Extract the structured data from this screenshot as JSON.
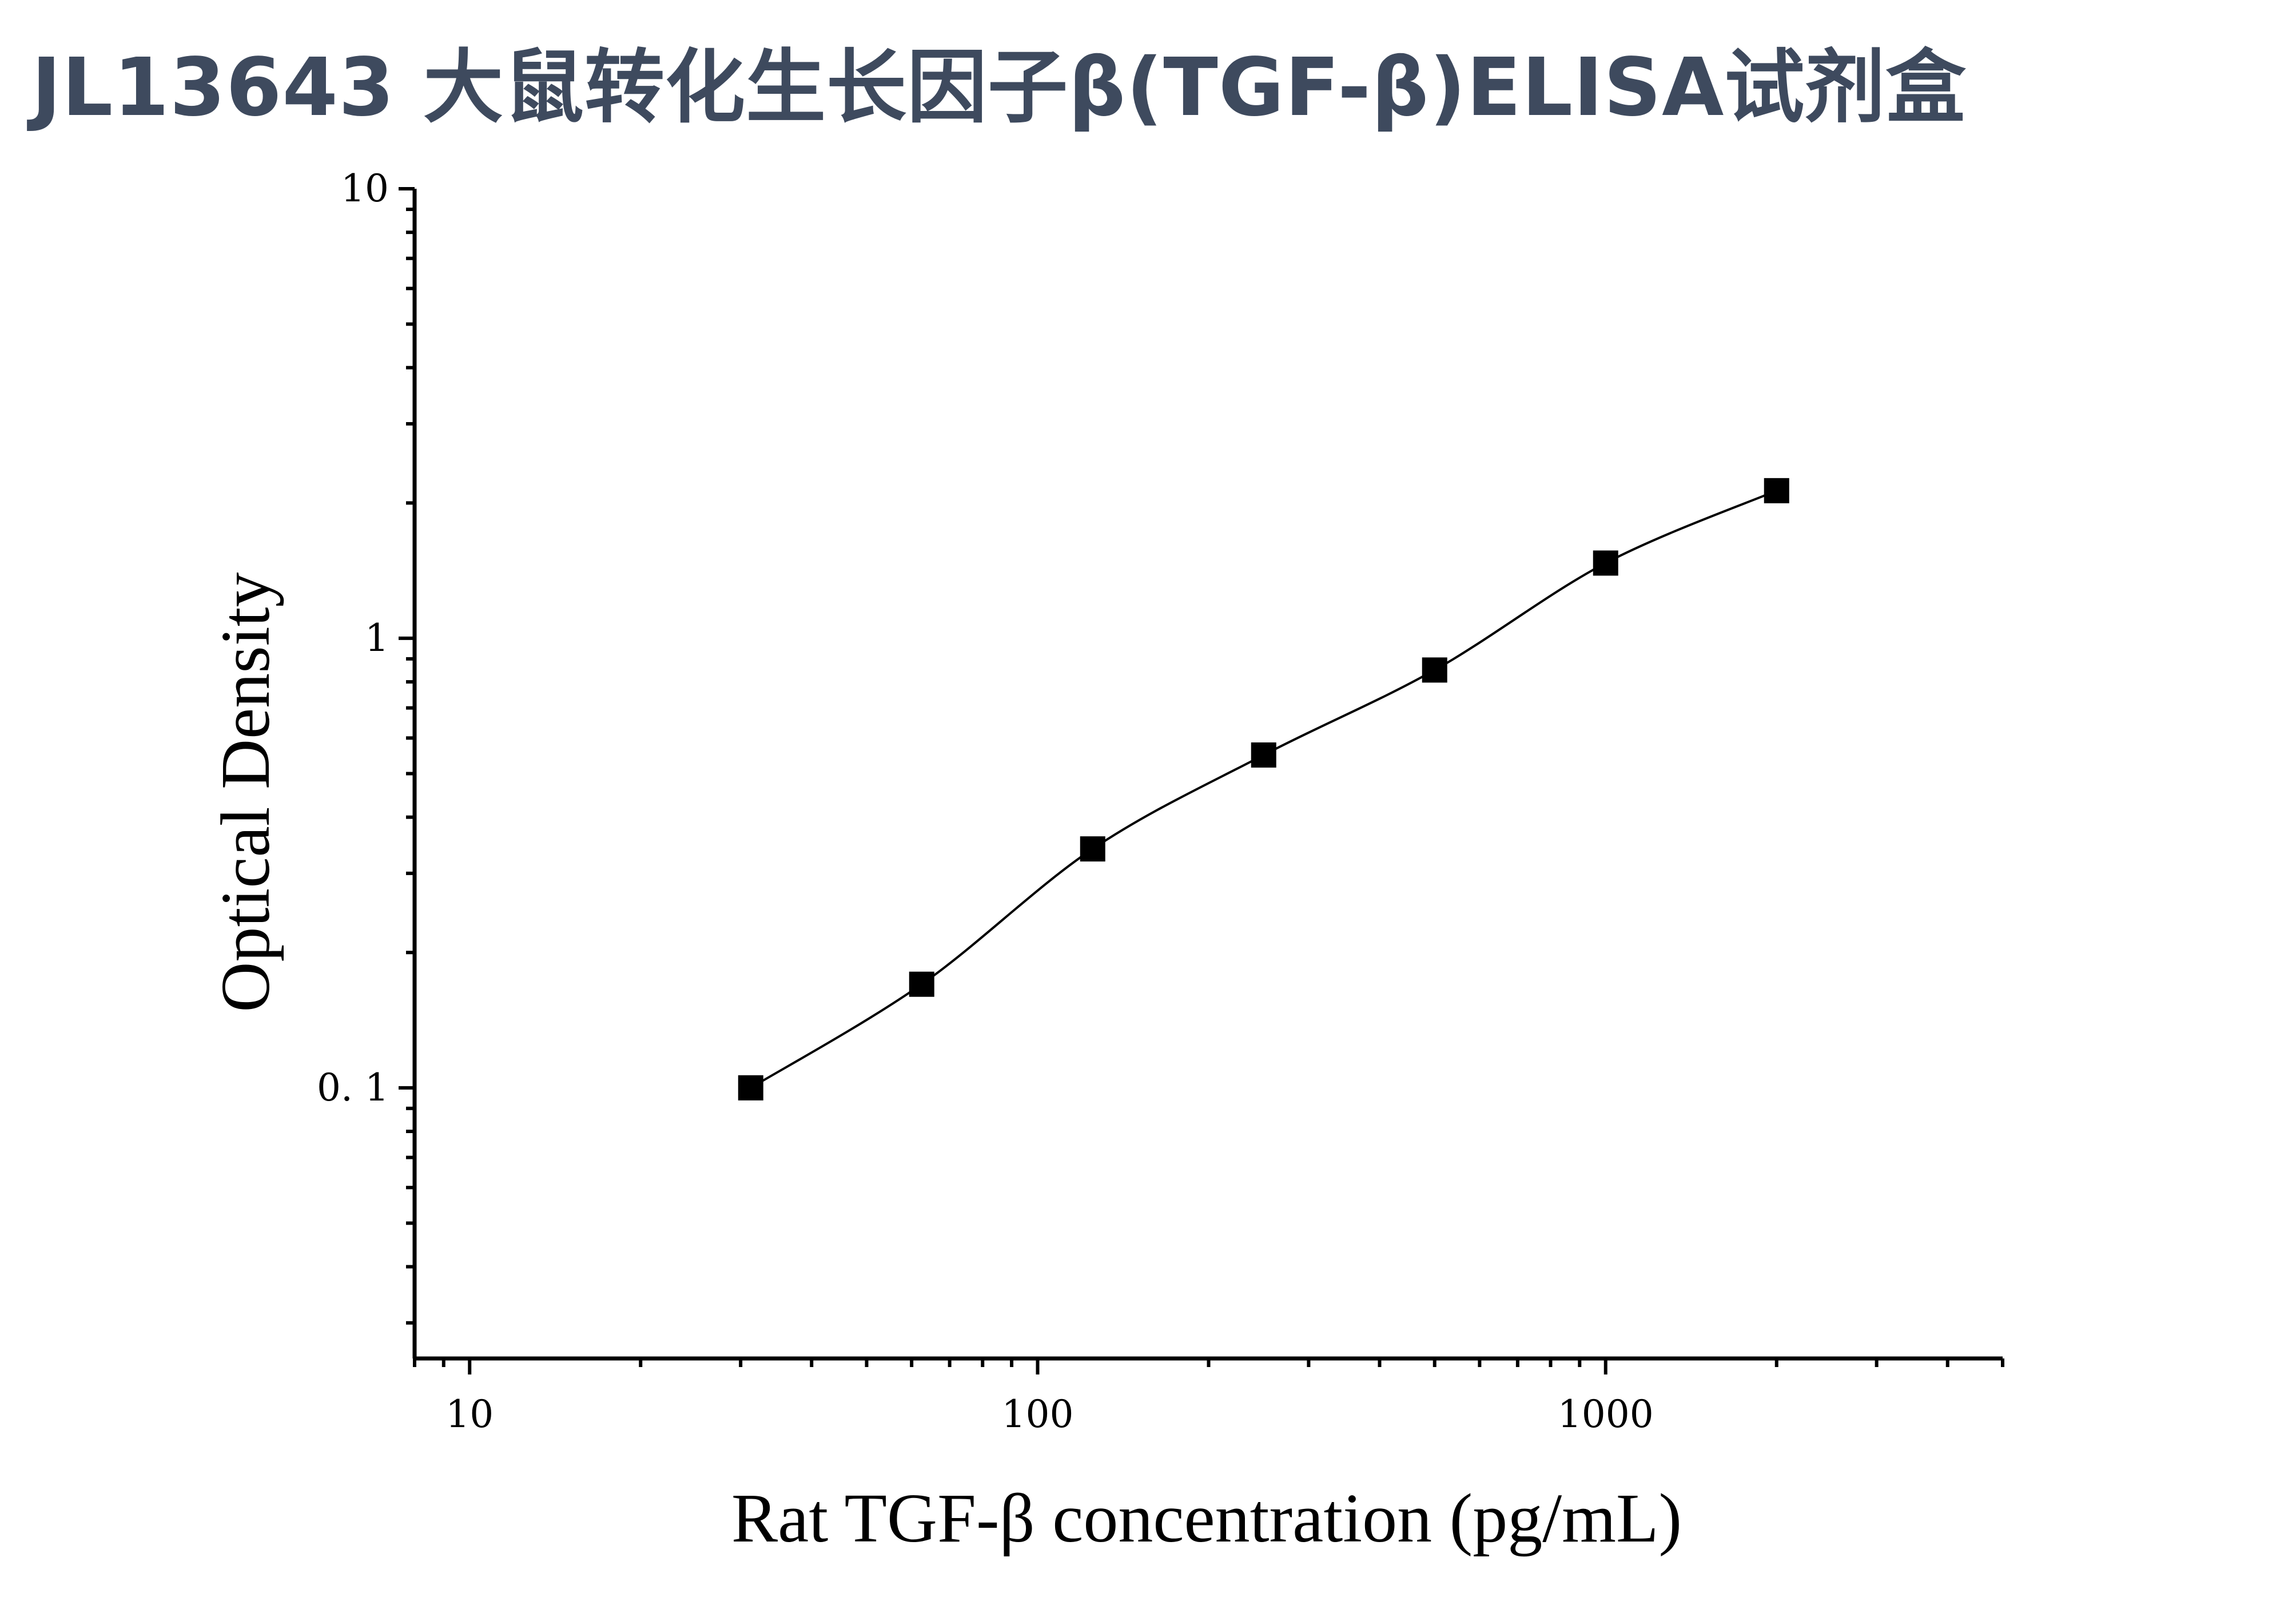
{
  "title": "JL13643 大鼠转化生长因子β(TGF-β)ELISA试剂盒",
  "chart_data": {
    "type": "scatter",
    "xlabel": "Rat TGF-β concentration (pg/mL)",
    "ylabel": "Optical Density",
    "x_scale": "log",
    "y_scale": "log",
    "xlim": [
      8,
      5000
    ],
    "ylim": [
      0.025,
      10
    ],
    "x_ticks": [
      10,
      100,
      1000
    ],
    "x_tick_labels": [
      "10",
      "100",
      "1000"
    ],
    "y_ticks": [
      0.1,
      1,
      10
    ],
    "y_tick_labels": [
      "0. 1",
      "1",
      "10"
    ],
    "grid": false,
    "legend": false,
    "series": [
      {
        "marker": "square",
        "color": "#000000",
        "points": [
          {
            "x": 31.25,
            "y": 0.1
          },
          {
            "x": 62.5,
            "y": 0.17
          },
          {
            "x": 125,
            "y": 0.34
          },
          {
            "x": 250,
            "y": 0.55
          },
          {
            "x": 500,
            "y": 0.85
          },
          {
            "x": 1000,
            "y": 1.47
          },
          {
            "x": 2000,
            "y": 2.13
          }
        ]
      }
    ],
    "fit_curve": "smooth curve through points"
  }
}
